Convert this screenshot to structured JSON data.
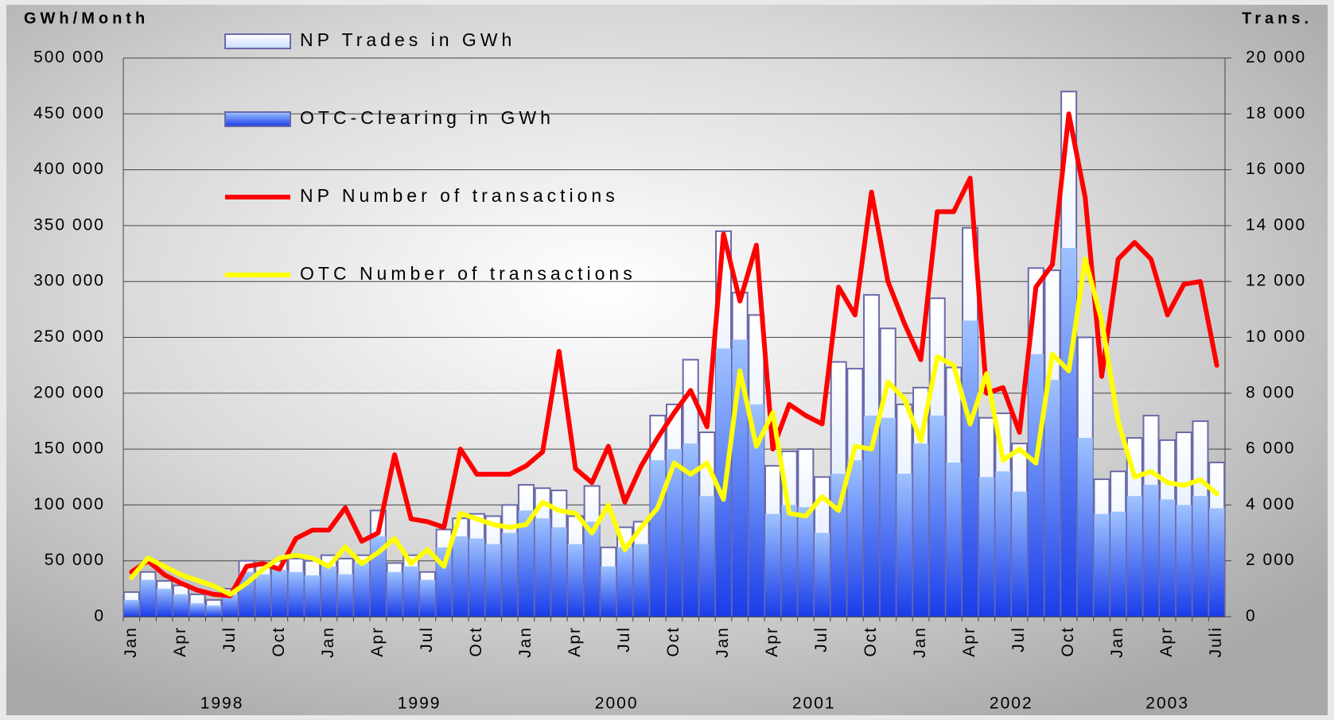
{
  "chart_data": {
    "type": "bar_line",
    "y_label": "GWh/Month",
    "y2_label": "Trans.",
    "legend": "top-left",
    "grid": true,
    "categories": [
      "Jan",
      null,
      null,
      "Apr",
      null,
      null,
      "Jul",
      null,
      null,
      "Oct",
      null,
      null,
      "Jan",
      null,
      null,
      "Apr",
      null,
      null,
      "Jul",
      null,
      null,
      "Oct",
      null,
      null,
      "Jan",
      null,
      null,
      "Apr",
      null,
      null,
      "Jul",
      null,
      null,
      "Oct",
      null,
      null,
      "Jan",
      null,
      null,
      "Apr",
      null,
      null,
      "Jul",
      null,
      null,
      "Oct",
      null,
      null,
      "Jan",
      null,
      null,
      "Apr",
      null,
      null,
      "Jul",
      null,
      null,
      "Oct",
      null,
      null,
      "Jan",
      null,
      null,
      "Apr",
      null,
      null,
      "Juli"
    ],
    "year_labels": [
      "1998",
      "1999",
      "2000",
      "2001",
      "2002",
      "2003"
    ],
    "ylim": [
      0,
      500000
    ],
    "yticks": [
      0,
      {
        "value": 50000,
        "label": "50 000"
      },
      {
        "value": 100000,
        "label": "100 000"
      },
      {
        "value": 150000,
        "label": "150 000"
      },
      {
        "value": 200000,
        "label": "200 000"
      },
      {
        "value": 250000,
        "label": "250 000"
      },
      {
        "value": 300000,
        "label": "300 000"
      },
      {
        "value": 350000,
        "label": "350 000"
      },
      {
        "value": 400000,
        "label": "400 000"
      },
      {
        "value": 450000,
        "label": "450 000"
      },
      {
        "value": 500000,
        "label": "500 000"
      }
    ],
    "y2lim": [
      0,
      20000
    ],
    "y2ticks": [
      0,
      {
        "value": 2000,
        "label": "2 000"
      },
      {
        "value": 4000,
        "label": "4 000"
      },
      {
        "value": 6000,
        "label": "6 000"
      },
      {
        "value": 8000,
        "label": "8 000"
      },
      {
        "value": 10000,
        "label": "10 000"
      },
      {
        "value": 12000,
        "label": "12 000"
      },
      {
        "value": 14000,
        "label": "14 000"
      },
      {
        "value": 16000,
        "label": "16 000"
      },
      {
        "value": 18000,
        "label": "18 000"
      },
      {
        "value": 20000,
        "label": "20 000"
      }
    ],
    "series": [
      {
        "name": "NP Trades in GWh",
        "kind": "bar",
        "color": "#c8dcff",
        "values": [
          22000,
          40000,
          32000,
          28000,
          20000,
          15000,
          25000,
          50000,
          48000,
          50000,
          52000,
          50000,
          55000,
          52000,
          55000,
          95000,
          48000,
          55000,
          40000,
          78000,
          88000,
          92000,
          90000,
          100000,
          118000,
          115000,
          113000,
          90000,
          117000,
          62000,
          80000,
          85000,
          180000,
          190000,
          230000,
          165000,
          345000,
          290000,
          270000,
          135000,
          148000,
          150000,
          125000,
          228000,
          222000,
          288000,
          258000,
          190000,
          205000,
          285000,
          223000,
          348000,
          178000,
          182000,
          155000,
          312000,
          310000,
          470000,
          250000,
          123000,
          130000,
          160000,
          180000,
          158000,
          165000,
          175000,
          138000
        ]
      },
      {
        "name": "OTC-Clearing in GWh",
        "kind": "bar",
        "color": "#1a3ce8",
        "values": [
          15000,
          33000,
          25000,
          20000,
          12000,
          10000,
          20000,
          40000,
          38000,
          42000,
          40000,
          37000,
          45000,
          38000,
          48000,
          72000,
          40000,
          45000,
          33000,
          62000,
          72000,
          70000,
          65000,
          75000,
          95000,
          88000,
          80000,
          65000,
          85000,
          45000,
          62000,
          65000,
          140000,
          150000,
          155000,
          108000,
          240000,
          248000,
          190000,
          92000,
          100000,
          98000,
          75000,
          128000,
          140000,
          180000,
          178000,
          128000,
          155000,
          180000,
          138000,
          265000,
          125000,
          130000,
          112000,
          235000,
          212000,
          330000,
          160000,
          92000,
          94000,
          108000,
          118000,
          105000,
          100000,
          108000,
          97000
        ]
      },
      {
        "name": "NP Number of transactions",
        "kind": "line",
        "axis": "y2",
        "color": "#ff0000",
        "values": [
          1600,
          2000,
          1500,
          1200,
          950,
          800,
          750,
          1800,
          1900,
          1700,
          2800,
          3100,
          3100,
          3900,
          2700,
          3000,
          5800,
          3500,
          3400,
          3200,
          6000,
          5100,
          5100,
          5100,
          5400,
          5900,
          9500,
          5300,
          4800,
          6100,
          4100,
          5400,
          6400,
          7300,
          8100,
          6800,
          13700,
          11300,
          13300,
          6000,
          7600,
          7200,
          6900,
          11800,
          10800,
          15200,
          12000,
          10500,
          9200,
          14500,
          14500,
          15700,
          8000,
          8200,
          6600,
          11800,
          12600,
          18000,
          15000,
          8600,
          12800,
          13400,
          12800,
          10800,
          11900,
          12000,
          9000
        ]
      },
      {
        "name": "OTC  Number of transactions",
        "kind": "line",
        "axis": "y2",
        "color": "#ffff00",
        "values": [
          1400,
          2100,
          1800,
          1500,
          1300,
          1100,
          800,
          1200,
          1700,
          2100,
          2200,
          2100,
          1800,
          2500,
          1900,
          2300,
          2800,
          1900,
          2400,
          1800,
          3700,
          3500,
          3300,
          3200,
          3300,
          4100,
          3800,
          3700,
          3000,
          4000,
          2400,
          3200,
          3900,
          5500,
          5100,
          5500,
          4200,
          8800,
          6100,
          7300,
          3700,
          3600,
          4300,
          3800,
          6100,
          6000,
          8400,
          7800,
          6300,
          9300,
          9000,
          6900,
          8700,
          5600,
          6000,
          5500,
          9400,
          8800,
          12800,
          10600,
          7000,
          5000,
          5200,
          4800,
          4700,
          4900,
          4400
        ]
      }
    ]
  }
}
